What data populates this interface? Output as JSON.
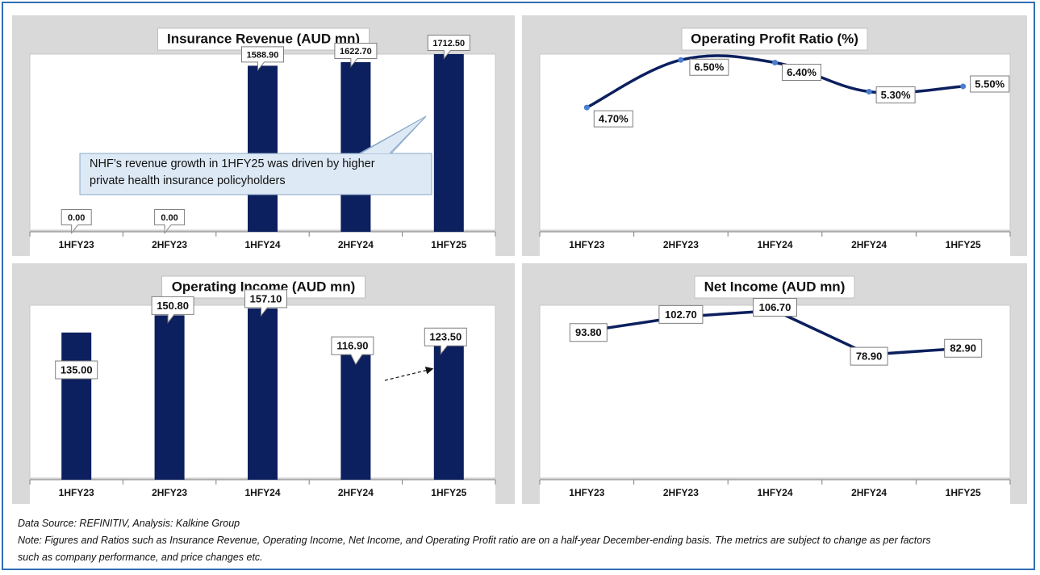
{
  "chart_data": [
    {
      "id": "rev",
      "type": "bar",
      "title": "Insurance Revenue (AUD mn)",
      "categories": [
        "1HFY23",
        "2HFY23",
        "1HFY24",
        "2HFY24",
        "1HFY25"
      ],
      "values": [
        0.0,
        0.0,
        1588.9,
        1622.7,
        1712.5
      ],
      "data_labels": [
        "0.00",
        "0.00",
        "1588.90",
        "1622.70",
        "1712.50"
      ],
      "ylim": [
        0,
        1700
      ],
      "color": "#0c1f5e",
      "annotation": "NHF’s revenue growth in 1HFY25 was driven by higher private health insurance policyholders"
    },
    {
      "id": "opr",
      "type": "line",
      "title": "Operating Profit Ratio (%)",
      "categories": [
        "1HFY23",
        "2HFY23",
        "1HFY24",
        "2HFY24",
        "1HFY25"
      ],
      "values": [
        4.7,
        6.5,
        6.4,
        5.3,
        5.5
      ],
      "data_labels": [
        "4.70%",
        "6.50%",
        "6.40%",
        "5.30%",
        "5.50%"
      ],
      "ylim": [
        0,
        6.72
      ],
      "smooth": true,
      "color": "#0c1f5e",
      "marker_color": "#4a7fd0"
    },
    {
      "id": "opi",
      "type": "bar",
      "title": "Operating Income (AUD mn)",
      "categories": [
        "1HFY23",
        "2HFY23",
        "1HFY24",
        "2HFY24",
        "1HFY25"
      ],
      "values": [
        135.0,
        150.8,
        157.1,
        116.9,
        123.5
      ],
      "data_labels": [
        "135.00",
        "150.80",
        "157.10",
        "116.90",
        "123.50"
      ],
      "ylim": [
        0,
        160
      ],
      "color": "#0c1f5e"
    },
    {
      "id": "ni",
      "type": "line",
      "title": "Net Income (AUD mn)",
      "categories": [
        "1HFY23",
        "2HFY23",
        "1HFY24",
        "2HFY24",
        "1HFY25"
      ],
      "values": [
        93.8,
        102.7,
        106.7,
        78.9,
        82.9
      ],
      "data_labels": [
        "93.80",
        "102.70",
        "106.70",
        "78.90",
        "82.90"
      ],
      "ylim": [
        0,
        110
      ],
      "smooth": false,
      "color": "#0c1f5e"
    }
  ],
  "footer": {
    "source": "Data Source: REFINITIV, Analysis: Kalkine Group",
    "note_line1": "Note: Figures and Ratios such as Insurance Revenue, Operating Income, Net Income, and Operating Profit ratio are on a half-year December-ending basis. The metrics are subject to change as per factors",
    "note_line2": "such as company performance, and price changes etc."
  }
}
